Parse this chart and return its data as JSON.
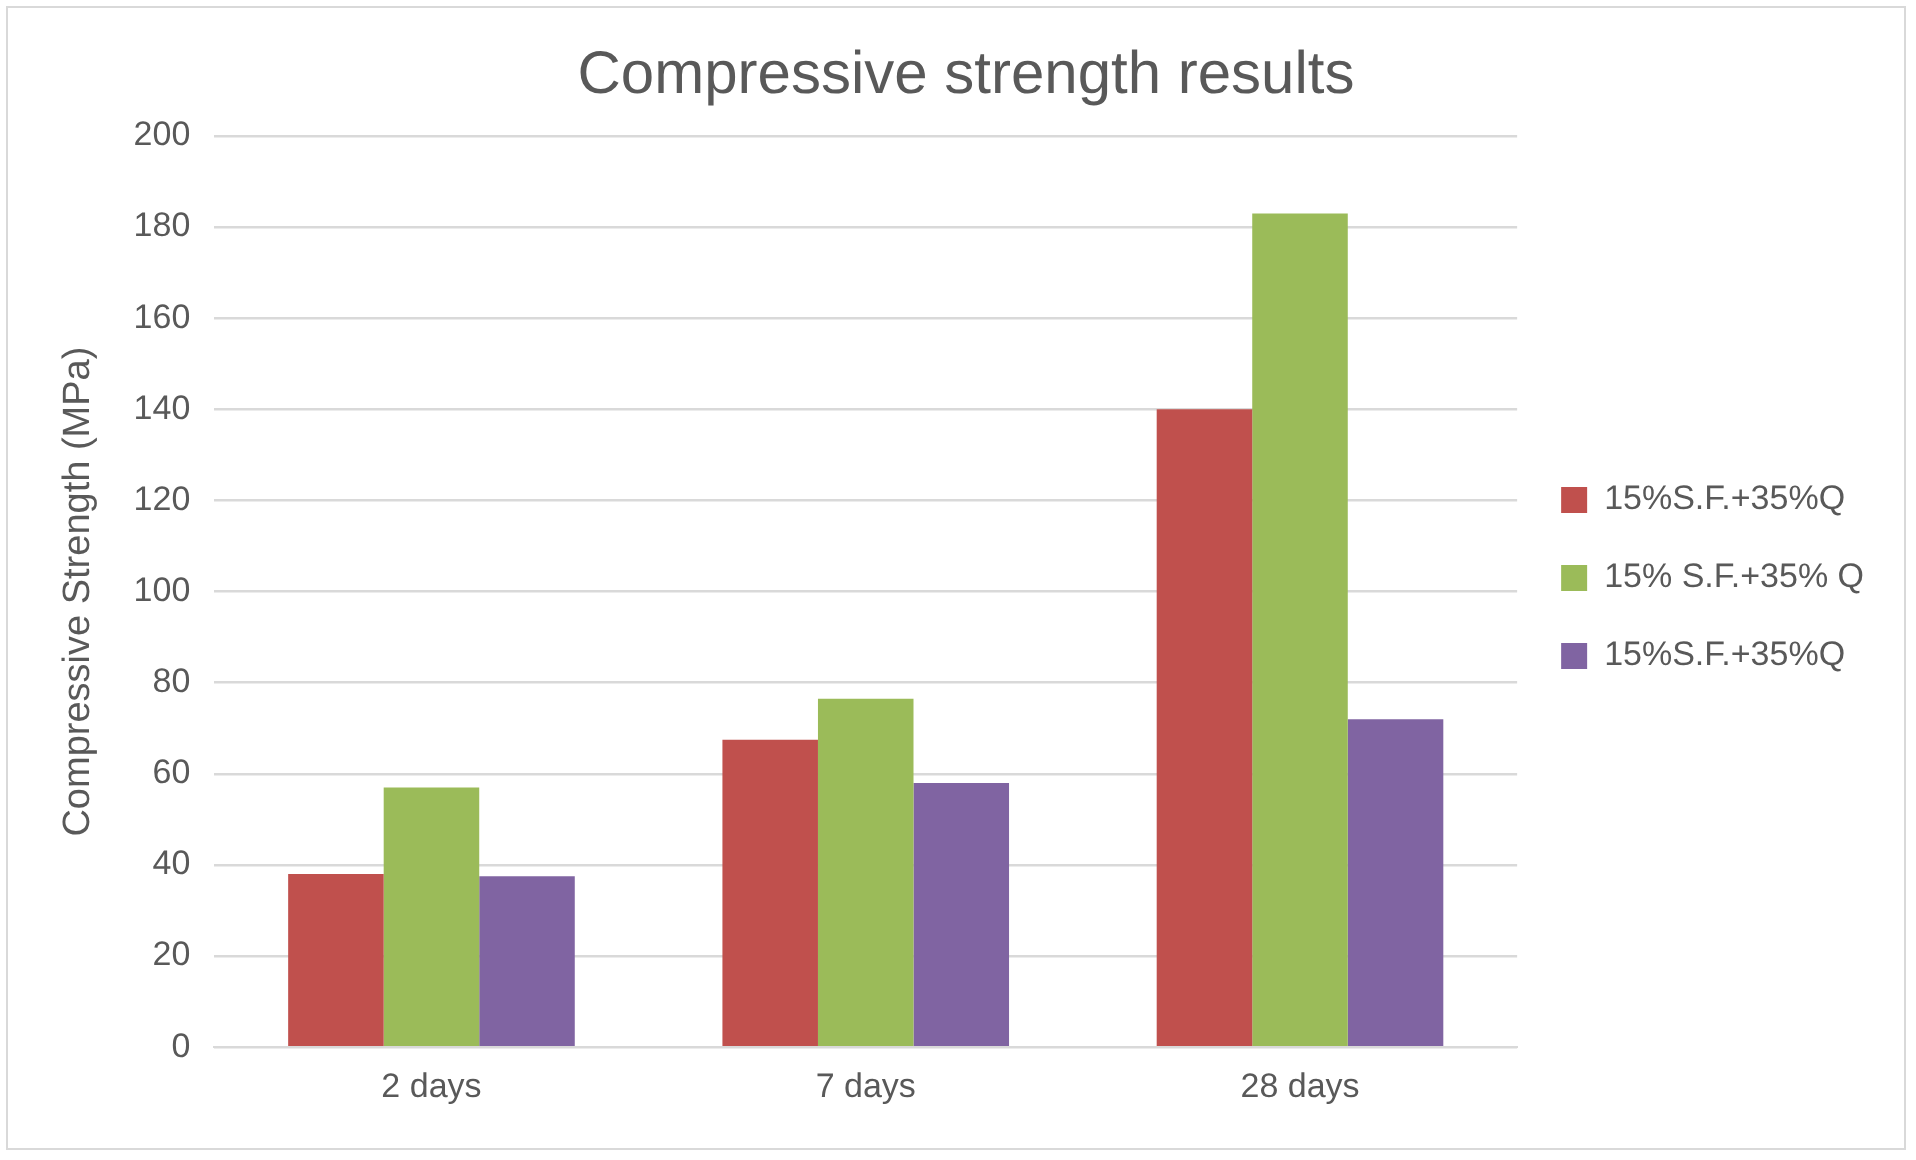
{
  "chart_data": {
    "type": "bar",
    "title": "Compressive strength results",
    "ylabel": "Compressive Strength (MPa)",
    "categories": [
      "2 days",
      "7 days",
      "28 days"
    ],
    "series": [
      {
        "name": "15%S.F.+35%Q",
        "color": "#c0504d",
        "values": [
          38,
          67.5,
          140
        ]
      },
      {
        "name": "15% S.F.+35% Q",
        "color": "#9bbb59",
        "values": [
          57,
          76.5,
          183
        ]
      },
      {
        "name": "15%S.F.+35%Q",
        "color": "#8064a2",
        "values": [
          37.5,
          58,
          72
        ]
      }
    ],
    "ylim": [
      0,
      200
    ],
    "yticks": [
      0,
      20,
      40,
      60,
      80,
      100,
      120,
      140,
      160,
      180,
      200
    ],
    "grid": "y",
    "legend": "right"
  }
}
